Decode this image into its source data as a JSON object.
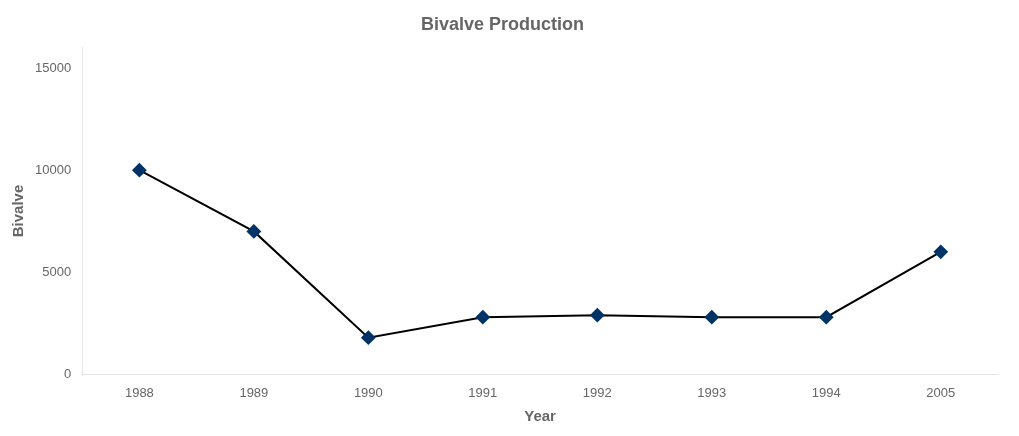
{
  "chart_data": {
    "type": "line",
    "title": "Bivalve Production",
    "xlabel": "Year",
    "ylabel": "Bivalve",
    "categories": [
      "1988",
      "1989",
      "1990",
      "1991",
      "1992",
      "1993",
      "1994",
      "2005"
    ],
    "values": [
      10000,
      7000,
      1800,
      2800,
      2900,
      2800,
      2800,
      6000
    ],
    "color": "#000000",
    "marker_color": "#003366",
    "marker": "diamond",
    "line_style": "solid",
    "ylim": [
      0,
      16000
    ],
    "yticks": [
      0,
      5000,
      10000,
      15000
    ],
    "grid": false
  }
}
